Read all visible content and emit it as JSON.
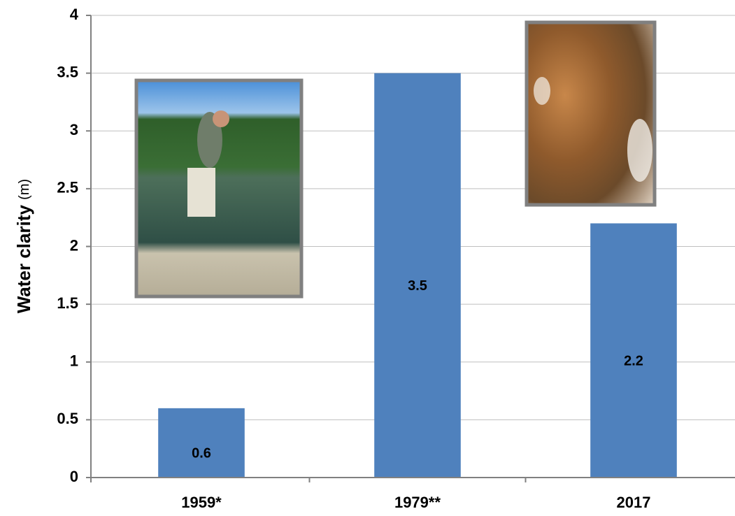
{
  "chart_data": {
    "type": "bar",
    "ylabel": "Water clarity",
    "ylabel_unit": "(m)",
    "categories": [
      "1959*",
      "1979**",
      "2017"
    ],
    "values": [
      0.6,
      3.5,
      2.2
    ],
    "color": "#4f81bd",
    "ylim": [
      0,
      4
    ],
    "yticks": [
      0,
      0.5,
      1,
      1.5,
      2,
      2.5,
      3,
      3.5,
      4
    ],
    "grid": true
  }
}
